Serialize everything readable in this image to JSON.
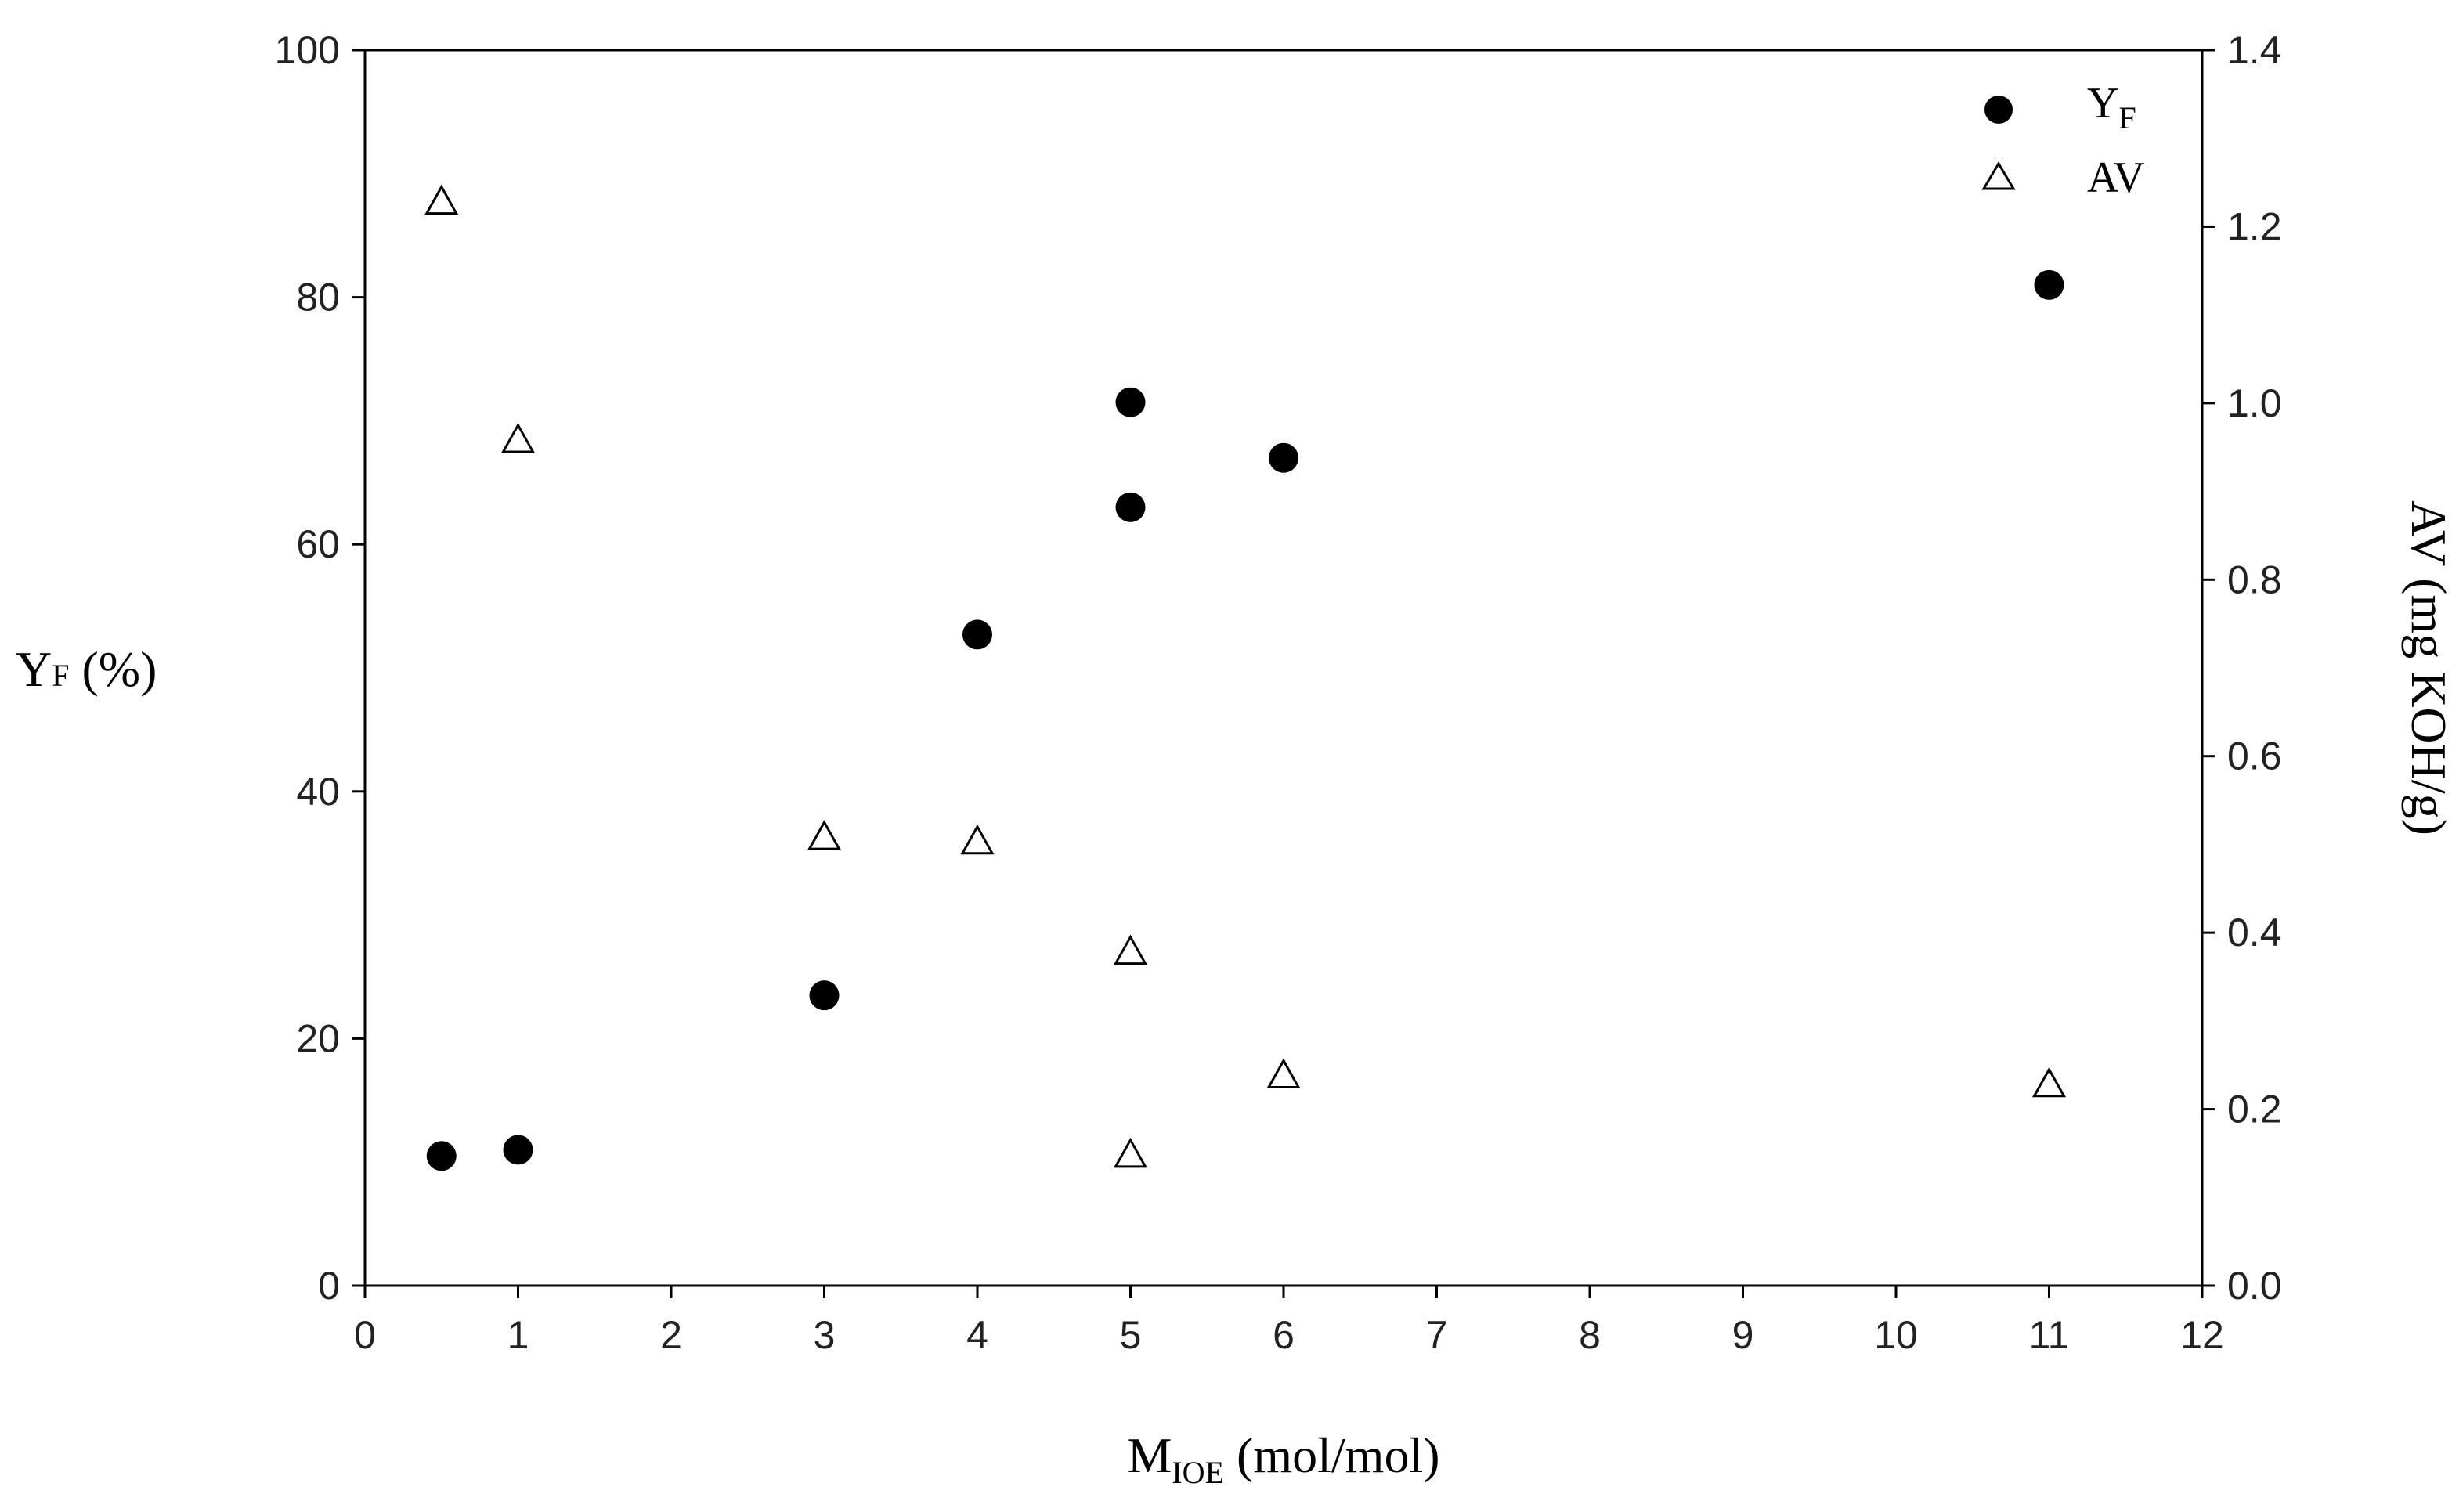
{
  "chart_data": {
    "type": "scatter",
    "x_axis": {
      "label_main": "M",
      "label_sub": "IOE",
      "label_rest": " (mol/mol)",
      "range": [
        0,
        12
      ],
      "ticks": [
        "0",
        "1",
        "2",
        "3",
        "4",
        "5",
        "6",
        "7",
        "8",
        "9",
        "10",
        "11",
        "12"
      ]
    },
    "y_axis_left": {
      "label_main": "Y",
      "label_sub": "F",
      "label_rest": " (%)",
      "range": [
        0,
        100
      ],
      "ticks": [
        "0",
        "20",
        "40",
        "60",
        "80",
        "100"
      ]
    },
    "y_axis_right": {
      "label": "AV (mg KOH/g)",
      "range": [
        0,
        1.4
      ],
      "ticks": [
        "0.0",
        "0.2",
        "0.4",
        "0.6",
        "0.8",
        "1.0",
        "1.2",
        "1.4"
      ]
    },
    "legend": {
      "placement": "top-right",
      "entries": [
        {
          "main": "Y",
          "sub": "F",
          "marker": "filled-circle"
        },
        {
          "main": "AV",
          "sub": "",
          "marker": "open-triangle"
        }
      ]
    },
    "grid": false,
    "series": [
      {
        "name": "YF",
        "axis": "left",
        "marker": "filled-circle",
        "color": "#000000",
        "points": [
          {
            "x": 0.5,
            "y": 10.5
          },
          {
            "x": 1,
            "y": 11
          },
          {
            "x": 3,
            "y": 23.5
          },
          {
            "x": 4,
            "y": 52.7
          },
          {
            "x": 5,
            "y": 63
          },
          {
            "x": 5,
            "y": 71.5
          },
          {
            "x": 6,
            "y": 67
          },
          {
            "x": 11,
            "y": 81
          }
        ]
      },
      {
        "name": "AV",
        "axis": "right",
        "marker": "open-triangle",
        "color": "#000000",
        "points": [
          {
            "x": 0.5,
            "y": 1.23
          },
          {
            "x": 1,
            "y": 0.96
          },
          {
            "x": 3,
            "y": 0.51
          },
          {
            "x": 4,
            "y": 0.505
          },
          {
            "x": 5,
            "y": 0.38
          },
          {
            "x": 5,
            "y": 0.15
          },
          {
            "x": 6,
            "y": 0.24
          },
          {
            "x": 11,
            "y": 0.23
          }
        ]
      }
    ]
  }
}
